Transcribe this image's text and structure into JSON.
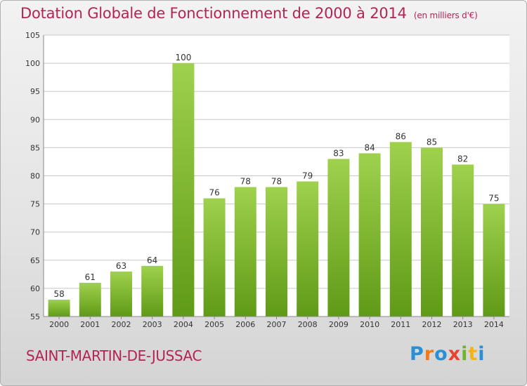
{
  "header": {
    "title": "Dotation Globale de Fonctionnement de 2000 à 2014",
    "unit": "(en milliers d'€)"
  },
  "footer": {
    "commune": "SAINT-MARTIN-DE-JUSSAC",
    "logo": "Proxiti"
  },
  "colors": {
    "bar_top": "#9fd14d",
    "bar_bottom": "#5f9a16",
    "title": "#b22552",
    "grid": "#c8c8c8"
  },
  "chart_data": {
    "type": "bar",
    "categories": [
      "2000",
      "2001",
      "2002",
      "2003",
      "2004",
      "2005",
      "2006",
      "2007",
      "2008",
      "2009",
      "2010",
      "2011",
      "2012",
      "2013",
      "2014"
    ],
    "values": [
      58,
      61,
      63,
      64,
      100,
      76,
      78,
      78,
      79,
      83,
      84,
      86,
      85,
      82,
      75
    ],
    "title": "Dotation Globale de Fonctionnement de 2000 à 2014",
    "subtitle": "(en milliers d'€)",
    "xlabel": "",
    "ylabel": "",
    "ylim": [
      55,
      105
    ],
    "yticks": [
      55,
      60,
      65,
      70,
      75,
      80,
      85,
      90,
      95,
      100,
      105
    ],
    "grid": true,
    "data_labels": true
  }
}
